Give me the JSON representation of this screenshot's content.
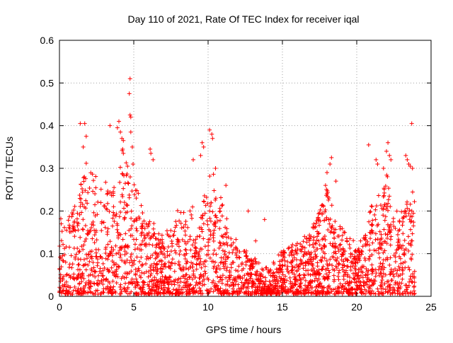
{
  "chart_data": {
    "type": "scatter",
    "title": "Day 110 of 2021, Rate Of TEC Index for receiver iqal",
    "xlabel": "GPS time / hours",
    "ylabel": "ROTI / TECUs",
    "xlim": [
      0,
      25
    ],
    "ylim": [
      0,
      0.6
    ],
    "xticks": [
      0,
      5,
      10,
      15,
      20,
      25
    ],
    "yticks": [
      0,
      0.1,
      0.2,
      0.3,
      0.4,
      0.5,
      0.6
    ],
    "xtick_labels": [
      "0",
      "5",
      "10",
      "15",
      "20",
      "25"
    ],
    "ytick_labels": [
      "0",
      "0.1",
      "0.2",
      "0.3",
      "0.4",
      "0.5",
      "0.6"
    ],
    "grid": true,
    "marker": "+",
    "series_color": "#ff0000",
    "envelope": {
      "description": "approximate upper envelope (hour, ROTI) of the dense scatter band",
      "x": [
        0,
        0.5,
        1.0,
        1.5,
        2.0,
        2.5,
        3.0,
        3.5,
        4.0,
        4.5,
        5.0,
        5.5,
        6.0,
        6.5,
        7.0,
        7.5,
        8.0,
        8.5,
        9.0,
        9.5,
        10.0,
        10.5,
        11.0,
        11.5,
        12.0,
        12.5,
        13.0,
        13.5,
        14.0,
        14.5,
        15.0,
        15.5,
        16.0,
        16.5,
        17.0,
        17.5,
        18.0,
        18.5,
        19.0,
        19.5,
        20.0,
        20.5,
        21.0,
        21.5,
        22.0,
        22.5,
        23.0,
        23.5,
        23.9
      ],
      "y": [
        0.18,
        0.2,
        0.22,
        0.3,
        0.28,
        0.25,
        0.24,
        0.26,
        0.3,
        0.35,
        0.28,
        0.2,
        0.2,
        0.14,
        0.14,
        0.16,
        0.2,
        0.2,
        0.2,
        0.18,
        0.3,
        0.25,
        0.2,
        0.15,
        0.12,
        0.1,
        0.09,
        0.07,
        0.06,
        0.08,
        0.1,
        0.12,
        0.12,
        0.14,
        0.16,
        0.2,
        0.24,
        0.18,
        0.16,
        0.14,
        0.1,
        0.14,
        0.2,
        0.22,
        0.28,
        0.2,
        0.18,
        0.26,
        0.22
      ]
    },
    "points": [
      [
        1.4,
        0.405
      ],
      [
        1.7,
        0.405
      ],
      [
        1.8,
        0.375
      ],
      [
        1.6,
        0.35
      ],
      [
        3.4,
        0.4
      ],
      [
        3.9,
        0.395
      ],
      [
        4.0,
        0.41
      ],
      [
        4.1,
        0.385
      ],
      [
        4.2,
        0.37
      ],
      [
        4.25,
        0.345
      ],
      [
        4.3,
        0.335
      ],
      [
        4.3,
        0.365
      ],
      [
        4.75,
        0.51
      ],
      [
        4.7,
        0.475
      ],
      [
        4.75,
        0.425
      ],
      [
        4.8,
        0.42
      ],
      [
        4.8,
        0.385
      ],
      [
        4.9,
        0.35
      ],
      [
        4.95,
        0.31
      ],
      [
        6.1,
        0.345
      ],
      [
        6.15,
        0.335
      ],
      [
        6.3,
        0.32
      ],
      [
        9.0,
        0.32
      ],
      [
        9.5,
        0.33
      ],
      [
        9.6,
        0.36
      ],
      [
        9.7,
        0.35
      ],
      [
        10.1,
        0.39
      ],
      [
        10.25,
        0.38
      ],
      [
        10.3,
        0.37
      ],
      [
        10.5,
        0.3
      ],
      [
        11.2,
        0.26
      ],
      [
        12.7,
        0.2
      ],
      [
        13.2,
        0.13
      ],
      [
        13.8,
        0.18
      ],
      [
        17.4,
        0.18
      ],
      [
        17.9,
        0.26
      ],
      [
        18.0,
        0.29
      ],
      [
        18.2,
        0.31
      ],
      [
        18.3,
        0.325
      ],
      [
        18.6,
        0.27
      ],
      [
        20.8,
        0.355
      ],
      [
        21.3,
        0.32
      ],
      [
        21.4,
        0.31
      ],
      [
        21.8,
        0.3
      ],
      [
        22.0,
        0.34
      ],
      [
        22.1,
        0.36
      ],
      [
        22.2,
        0.33
      ],
      [
        22.3,
        0.32
      ],
      [
        23.3,
        0.33
      ],
      [
        23.4,
        0.32
      ],
      [
        23.5,
        0.31
      ],
      [
        23.6,
        0.305
      ],
      [
        23.75,
        0.3
      ],
      [
        23.7,
        0.405
      ]
    ]
  }
}
